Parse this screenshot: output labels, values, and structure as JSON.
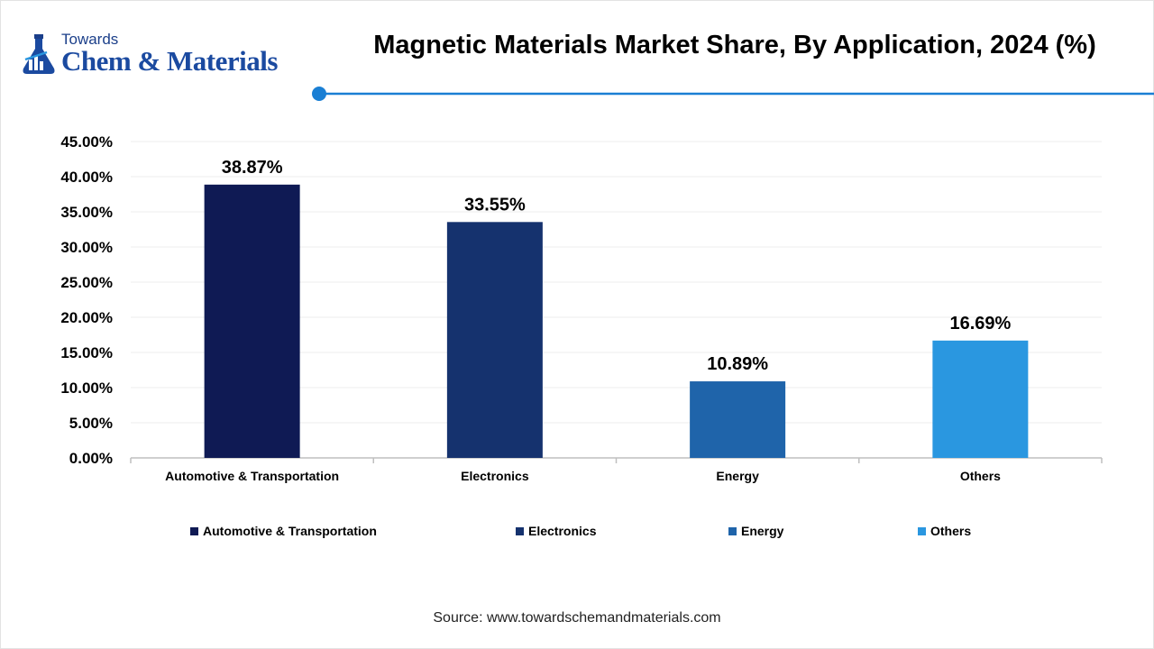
{
  "brand": {
    "top": "Towards",
    "main": "Chem & Materials"
  },
  "title": "Magnetic Materials Market Share, By Application, 2024 (%)",
  "colors": {
    "accent": "#1a7fd4",
    "bars": [
      "#0f1a54",
      "#15326e",
      "#1f64aa",
      "#2a97e0"
    ]
  },
  "chart_data": {
    "type": "bar",
    "title": "Magnetic Materials Market Share, By Application, 2024 (%)",
    "categories": [
      "Automotive & Transportation",
      "Electronics",
      "Energy",
      "Others"
    ],
    "values": [
      38.87,
      33.55,
      10.89,
      16.69
    ],
    "value_labels": [
      "38.87%",
      "33.55%",
      "10.89%",
      "16.69%"
    ],
    "ylim": [
      0,
      45
    ],
    "yticks": [
      "0.00%",
      "5.00%",
      "10.00%",
      "15.00%",
      "20.00%",
      "25.00%",
      "30.00%",
      "35.00%",
      "40.00%",
      "45.00%"
    ],
    "grid": true,
    "legend": "bottom",
    "legend_entries": [
      "Automotive & Transportation",
      "Electronics",
      "Energy",
      "Others"
    ]
  },
  "source": "Source: www.towardschemandmaterials.com"
}
